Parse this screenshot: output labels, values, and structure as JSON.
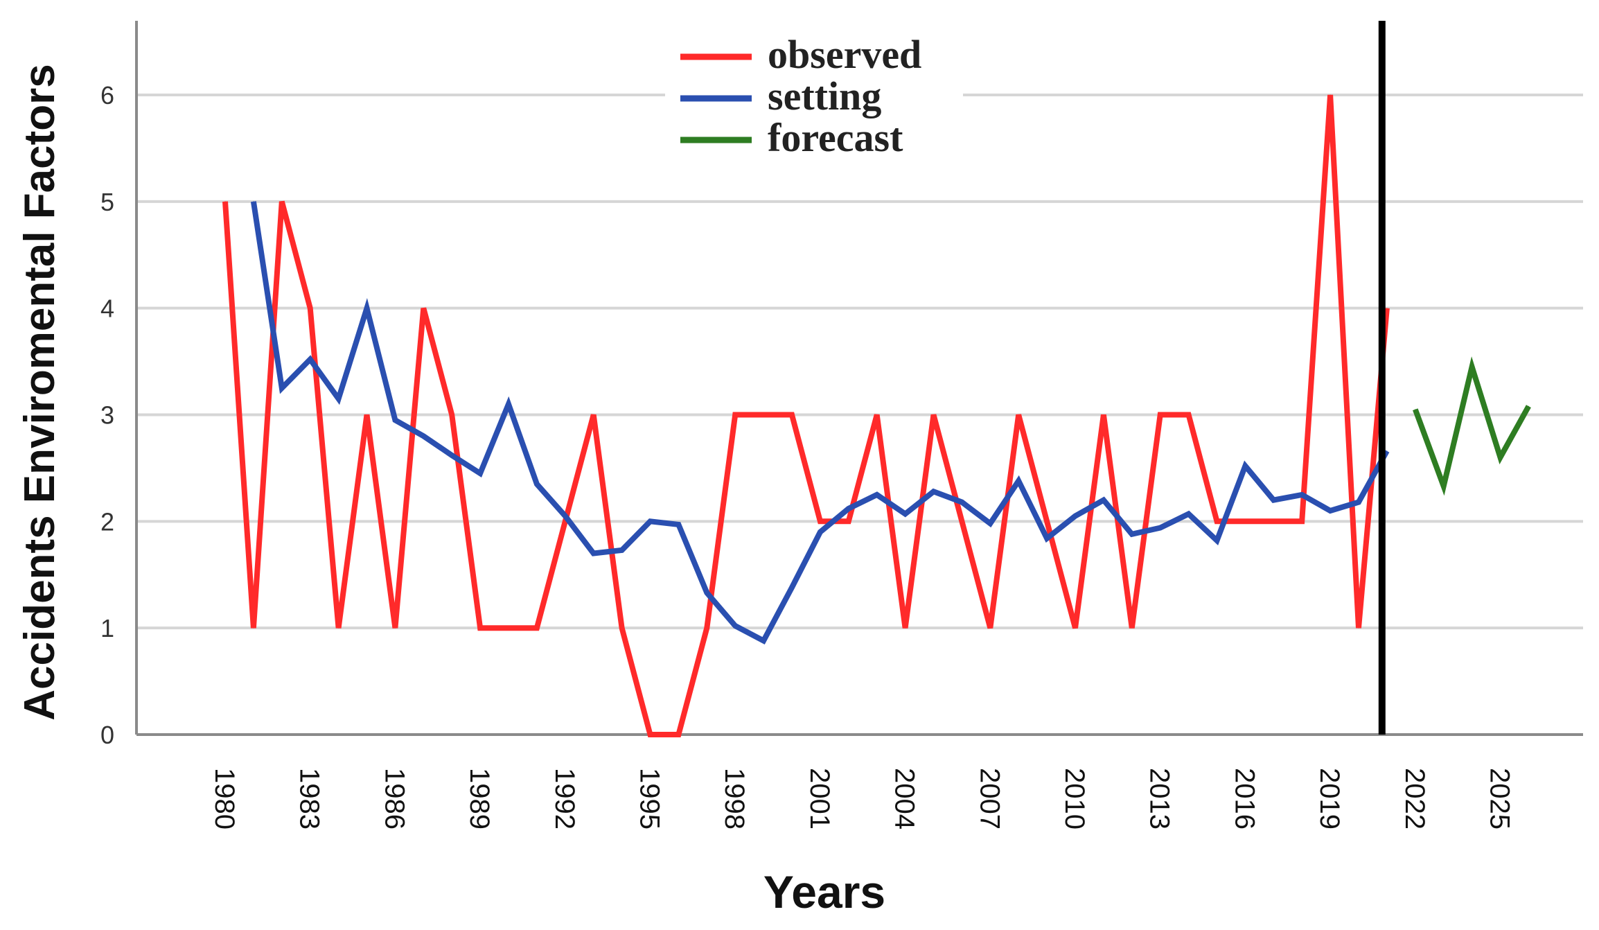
{
  "chart_data": {
    "type": "line",
    "title": "",
    "xlabel": "Years",
    "ylabel": "Accidents Enviromental Factors",
    "ylim": [
      0,
      6.6
    ],
    "yticks": [
      0,
      1,
      2,
      3,
      4,
      5,
      6
    ],
    "ytick_labels": [
      "0",
      "1",
      "2",
      "3",
      "4",
      "5",
      "6"
    ],
    "xtick_labels": [
      "1980",
      "1983",
      "1986",
      "1989",
      "1992",
      "1995",
      "1998",
      "2001",
      "2004",
      "2007",
      "2010",
      "2013",
      "2016",
      "2019",
      "2022",
      "2025"
    ],
    "grid": true,
    "legend_position": "top-center",
    "divider_year": 2022,
    "series": [
      {
        "name": "observed",
        "color": "#ff2a2a",
        "x": [
          1980,
          1981,
          1982,
          1983,
          1984,
          1985,
          1986,
          1987,
          1988,
          1989,
          1990,
          1991,
          1992,
          1993,
          1994,
          1995,
          1996,
          1997,
          1998,
          1999,
          2000,
          2001,
          2002,
          2003,
          2004,
          2005,
          2006,
          2007,
          2008,
          2009,
          2010,
          2011,
          2012,
          2013,
          2014,
          2015,
          2016,
          2017,
          2018,
          2019,
          2020,
          2021
        ],
        "values": [
          5,
          1,
          5,
          4,
          1,
          3,
          1,
          4,
          3,
          1,
          1,
          1,
          2,
          3,
          1,
          0,
          0,
          1,
          3,
          3,
          3,
          2,
          2,
          3,
          1,
          3,
          2,
          1,
          3,
          2,
          1,
          3,
          1,
          3,
          3,
          2,
          2,
          2,
          2,
          6,
          1,
          4
        ]
      },
      {
        "name": "setting",
        "color": "#2a4fb0",
        "x": [
          1981,
          1982,
          1983,
          1984,
          1985,
          1986,
          1987,
          1988,
          1989,
          1990,
          1991,
          1992,
          1993,
          1994,
          1995,
          1996,
          1997,
          1998,
          1999,
          2000,
          2001,
          2002,
          2003,
          2004,
          2005,
          2006,
          2007,
          2008,
          2009,
          2010,
          2011,
          2012,
          2013,
          2014,
          2015,
          2016,
          2017,
          2018,
          2019,
          2020,
          2021
        ],
        "values": [
          5,
          3.25,
          3.52,
          3.15,
          4,
          2.95,
          2.8,
          2.62,
          2.45,
          3.1,
          2.35,
          2.05,
          1.7,
          1.73,
          2,
          1.97,
          1.33,
          1.02,
          0.88,
          1.38,
          1.9,
          2.12,
          2.25,
          2.07,
          2.28,
          2.18,
          1.98,
          2.38,
          1.84,
          2.05,
          2.2,
          1.88,
          1.94,
          2.07,
          1.82,
          2.52,
          2.2,
          2.25,
          2.1,
          2.18,
          2.66
        ]
      },
      {
        "name": "forecast",
        "color": "#2e7d22",
        "x": [
          2022,
          2023,
          2024,
          2025,
          2026
        ],
        "values": [
          3.05,
          2.33,
          3.45,
          2.6,
          3.08
        ]
      }
    ]
  }
}
